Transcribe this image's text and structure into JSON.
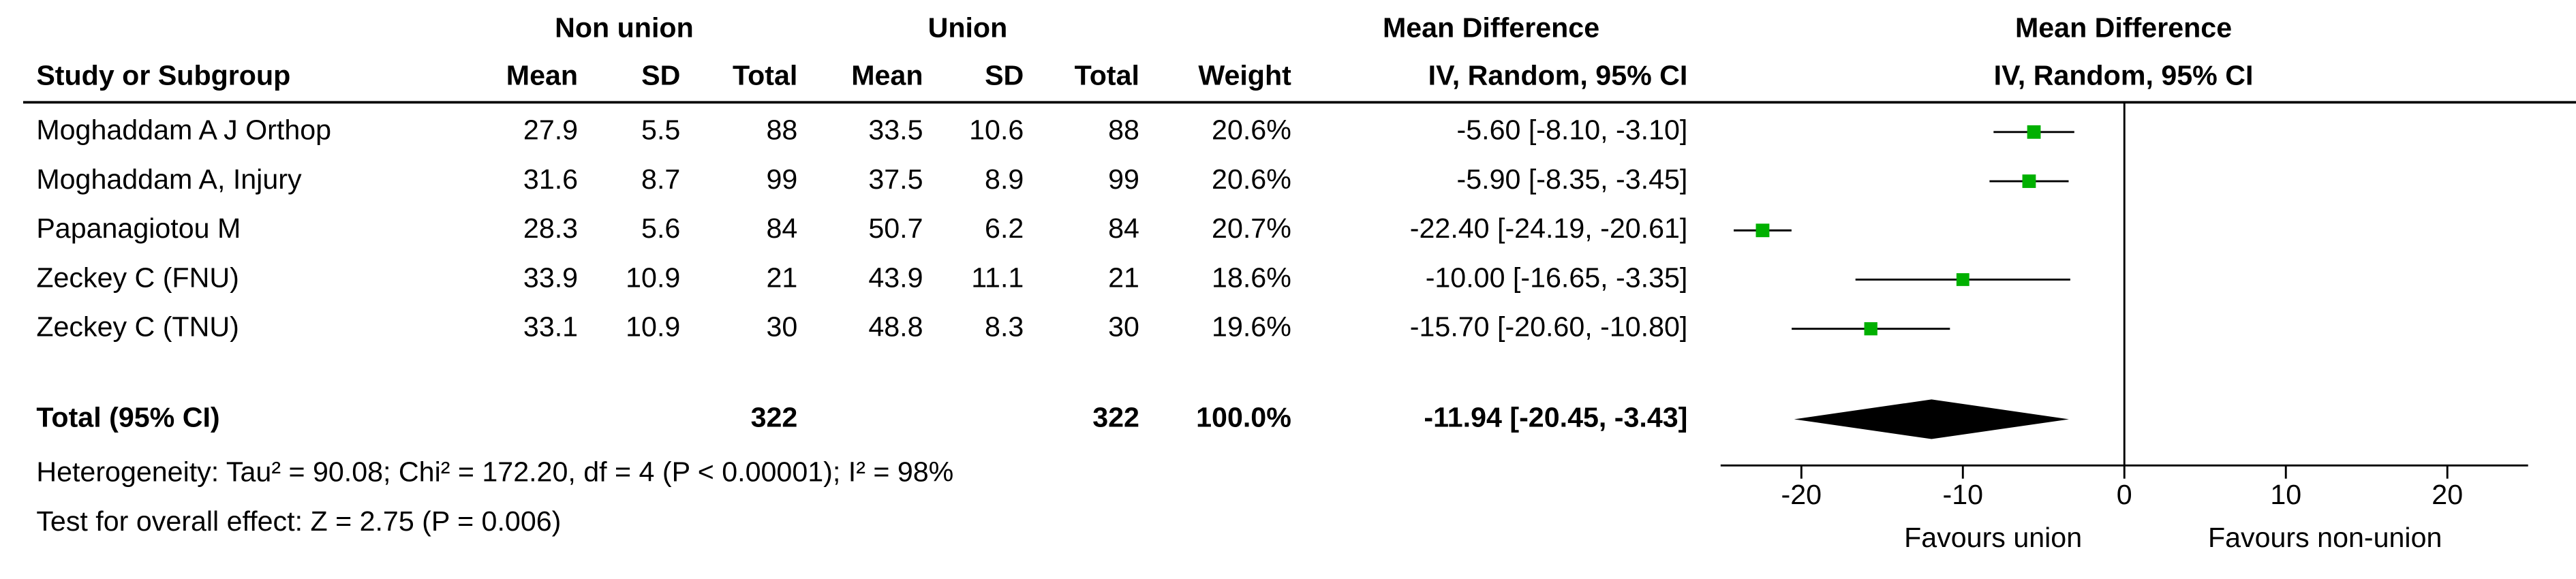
{
  "chart_data": {
    "type": "forest",
    "group_headers": [
      "Non union",
      "Union"
    ],
    "columns": [
      "Study or Subgroup",
      "Mean",
      "SD",
      "Total",
      "Mean",
      "SD",
      "Total",
      "Weight"
    ],
    "effect_header": "Mean Difference",
    "effect_subheader": "IV, Random, 95% CI",
    "plot_header": "Mean Difference",
    "plot_subheader": "IV, Random, 95% CI",
    "color": "#00b000",
    "studies": [
      {
        "name": "Moghaddam A J Orthop",
        "mean1": 27.9,
        "sd1": 5.5,
        "n1": 88,
        "mean2": 33.5,
        "sd2": 10.6,
        "n2": 88,
        "weight": {
          "value": 20.6,
          "label": "20.6%"
        },
        "effect": {
          "value": -5.6,
          "lo": -8.1,
          "hi": -3.1,
          "label": "-5.60 [-8.10, -3.10]"
        }
      },
      {
        "name": "Moghaddam A, Injury",
        "mean1": 31.6,
        "sd1": 8.7,
        "n1": 99,
        "mean2": 37.5,
        "sd2": 8.9,
        "n2": 99,
        "weight": {
          "value": 20.6,
          "label": "20.6%"
        },
        "effect": {
          "value": -5.9,
          "lo": -8.35,
          "hi": -3.45,
          "label": "-5.90 [-8.35, -3.45]"
        }
      },
      {
        "name": "Papanagiotou M",
        "mean1": 28.3,
        "sd1": 5.6,
        "n1": 84,
        "mean2": 50.7,
        "sd2": 6.2,
        "n2": 84,
        "weight": {
          "value": 20.7,
          "label": "20.7%"
        },
        "effect": {
          "value": -22.4,
          "lo": -24.19,
          "hi": -20.61,
          "label": "-22.40 [-24.19, -20.61]"
        }
      },
      {
        "name": "Zeckey C (FNU)",
        "mean1": 33.9,
        "sd1": 10.9,
        "n1": 21,
        "mean2": 43.9,
        "sd2": 11.1,
        "n2": 21,
        "weight": {
          "value": 18.6,
          "label": "18.6%"
        },
        "effect": {
          "value": -10,
          "lo": -16.65,
          "hi": -3.35,
          "label": "-10.00 [-16.65, -3.35]"
        }
      },
      {
        "name": "Zeckey C (TNU)",
        "mean1": 33.1,
        "sd1": 10.9,
        "n1": 30,
        "mean2": 48.8,
        "sd2": 8.3,
        "n2": 30,
        "weight": {
          "value": 19.6,
          "label": "19.6%"
        },
        "effect": {
          "value": -15.7,
          "lo": -20.6,
          "hi": -10.8,
          "label": "-15.70 [-20.60, -10.80]"
        }
      }
    ],
    "total": {
      "name": "Total (95% CI)",
      "n1": 322,
      "n2": 322,
      "weight": {
        "value": 100,
        "label": "100.0%"
      },
      "effect": {
        "value": -11.94,
        "lo": -20.45,
        "hi": -3.43,
        "label": "-11.94 [-20.45, -3.43]"
      }
    },
    "heterogeneity": "Heterogeneity: Tau² = 90.08; Chi² = 172.20, df = 4 (P < 0.00001); I² = 98%",
    "overall_test": "Test for overall effect: Z = 2.75 (P = 0.006)",
    "xlim": [
      -25,
      25
    ],
    "xticks": [
      -20,
      -10,
      0,
      10,
      20
    ],
    "xlabel_left": "Favours union",
    "xlabel_right": "Favours non-union"
  }
}
